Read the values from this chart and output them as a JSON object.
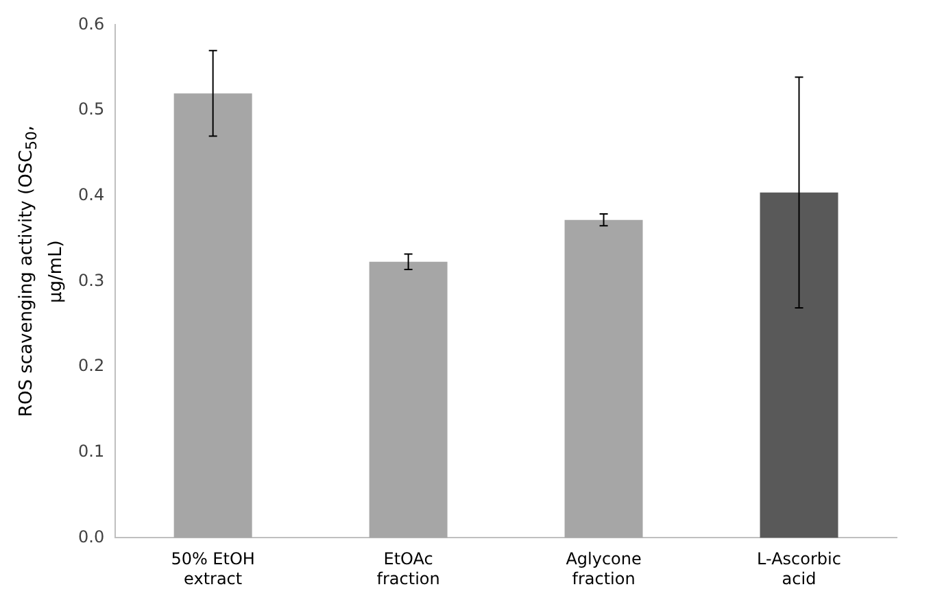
{
  "chart_data": {
    "type": "bar",
    "ylabel": "ROS scavenging activity (OSC$_{50}$, μg/mL)",
    "categories": [
      "50% EtOH extract",
      "EtOAc fraction",
      "Aglycone fraction",
      "L-Ascorbic acid"
    ],
    "values": [
      0.52,
      0.323,
      0.372,
      0.404
    ],
    "colors": [
      "#a6a6a6",
      "#a6a6a6",
      "#a6a6a6",
      "#595959"
    ],
    "errors": [
      0.05,
      0.009,
      0.007,
      0.135
    ],
    "ylim": [
      0,
      0.6
    ],
    "yticks": [
      {
        "value": 0,
        "label": "0.0"
      },
      0.1,
      0.2,
      0.3,
      0.4,
      0.5,
      0.6
    ],
    "grid": false,
    "legend": false
  }
}
